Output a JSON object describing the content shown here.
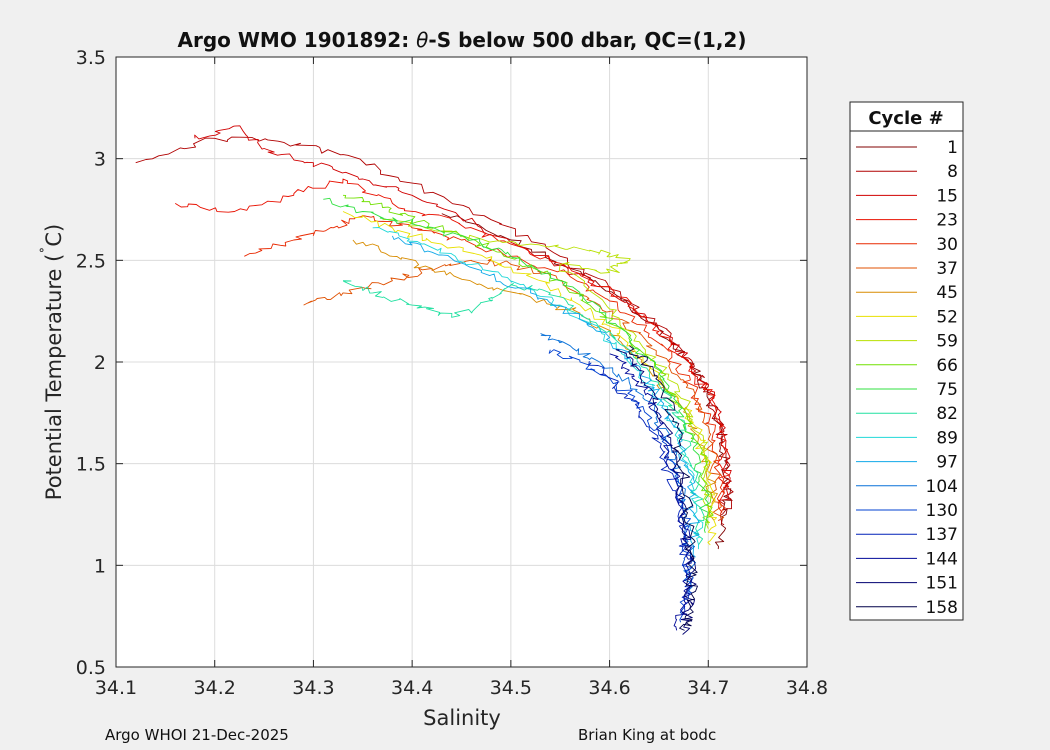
{
  "chart_data": {
    "type": "line",
    "title_prefix": "Argo WMO 1901892: ",
    "title_theta": "θ",
    "title_suffix": "-S below 500 dbar,  QC=(1,2)",
    "xlabel": "Salinity",
    "ylabel_main": "Potential Temperature (",
    "ylabel_degree": "˚",
    "ylabel_end": "C)",
    "xlim": [
      34.1,
      34.8
    ],
    "ylim": [
      0.5,
      3.5
    ],
    "xticks": [
      34.1,
      34.2,
      34.3,
      34.4,
      34.5,
      34.6,
      34.7,
      34.8
    ],
    "xtick_labels": [
      "34.1",
      "34.2",
      "34.3",
      "34.4",
      "34.5",
      "34.6",
      "34.7",
      "34.8"
    ],
    "yticks": [
      0.5,
      1,
      1.5,
      2,
      2.5,
      3,
      3.5
    ],
    "ytick_labels": [
      "0.5",
      "1",
      "1.5",
      "2",
      "2.5",
      "3",
      "3.5"
    ],
    "grid": true,
    "legend_title": "Cycle #",
    "legend_position": "right-outside",
    "series": [
      {
        "name": "1",
        "color": "#800000",
        "x": [
          34.43,
          34.5,
          34.56,
          34.61,
          34.65,
          34.68,
          34.7,
          34.71,
          34.715,
          34.72,
          34.718,
          34.71
        ],
        "y": [
          2.73,
          2.6,
          2.46,
          2.32,
          2.16,
          2.0,
          1.85,
          1.7,
          1.55,
          1.4,
          1.25,
          1.08
        ]
      },
      {
        "name": "8",
        "color": "#b00000",
        "x": [
          34.12,
          34.2,
          34.27,
          34.33,
          34.4,
          34.48,
          34.55,
          34.6,
          34.65,
          34.68,
          34.7,
          34.71,
          34.718,
          34.72,
          34.716
        ],
        "y": [
          2.98,
          3.1,
          3.08,
          3.02,
          2.88,
          2.7,
          2.52,
          2.36,
          2.18,
          2.02,
          1.88,
          1.72,
          1.55,
          1.38,
          1.2
        ]
      },
      {
        "name": "15",
        "color": "#d00000",
        "x": [
          34.18,
          34.22,
          34.25,
          34.3,
          34.35,
          34.4,
          34.47,
          34.54,
          34.6,
          34.65,
          34.68,
          34.7,
          34.712,
          34.718,
          34.716
        ],
        "y": [
          3.1,
          3.16,
          3.05,
          2.98,
          2.9,
          2.82,
          2.66,
          2.5,
          2.34,
          2.16,
          2.0,
          1.86,
          1.7,
          1.5,
          1.3
        ]
      },
      {
        "name": "23",
        "color": "#e81000",
        "x": [
          34.16,
          34.22,
          34.28,
          34.33,
          34.38,
          34.44,
          34.5,
          34.56,
          34.61,
          34.65,
          34.68,
          34.7,
          34.712,
          34.716,
          34.714
        ],
        "y": [
          2.78,
          2.74,
          2.82,
          2.9,
          2.78,
          2.7,
          2.58,
          2.46,
          2.32,
          2.15,
          2.0,
          1.84,
          1.66,
          1.46,
          1.26
        ]
      },
      {
        "name": "30",
        "color": "#e82800",
        "x": [
          34.23,
          34.28,
          34.32,
          34.35,
          34.4,
          34.45,
          34.5,
          34.56,
          34.6,
          34.64,
          34.67,
          34.69,
          34.705,
          34.712,
          34.712
        ],
        "y": [
          2.52,
          2.6,
          2.66,
          2.72,
          2.66,
          2.6,
          2.52,
          2.42,
          2.3,
          2.14,
          1.98,
          1.82,
          1.65,
          1.45,
          1.25
        ]
      },
      {
        "name": "37",
        "color": "#e05000",
        "x": [
          34.29,
          34.33,
          34.38,
          34.42,
          34.46,
          34.5,
          34.55,
          34.59,
          34.63,
          34.66,
          34.69,
          34.7,
          34.708,
          34.71
        ],
        "y": [
          2.28,
          2.34,
          2.4,
          2.46,
          2.5,
          2.48,
          2.4,
          2.28,
          2.14,
          1.98,
          1.8,
          1.62,
          1.42,
          1.22
        ]
      },
      {
        "name": "45",
        "color": "#d88c00",
        "x": [
          34.34,
          34.38,
          34.42,
          34.47,
          34.52,
          34.57,
          34.61,
          34.64,
          34.67,
          34.69,
          34.702,
          34.706
        ],
        "y": [
          2.6,
          2.52,
          2.46,
          2.38,
          2.32,
          2.24,
          2.12,
          1.96,
          1.8,
          1.62,
          1.42,
          1.22
        ]
      },
      {
        "name": "52",
        "color": "#e8e000",
        "x": [
          34.33,
          34.38,
          34.43,
          34.48,
          34.53,
          34.57,
          34.61,
          34.64,
          34.67,
          34.69,
          34.7,
          34.705,
          34.702
        ],
        "y": [
          2.74,
          2.66,
          2.58,
          2.5,
          2.4,
          2.28,
          2.14,
          1.98,
          1.82,
          1.64,
          1.46,
          1.26,
          1.1
        ]
      },
      {
        "name": "59",
        "color": "#b8e000",
        "x": [
          34.37,
          34.45,
          34.52,
          34.58,
          34.62,
          34.6,
          34.55,
          34.6,
          34.63,
          34.66,
          34.68,
          34.695,
          34.7,
          34.7
        ],
        "y": [
          2.7,
          2.62,
          2.58,
          2.55,
          2.5,
          2.44,
          2.48,
          2.26,
          2.1,
          1.94,
          1.76,
          1.58,
          1.38,
          1.18
        ]
      },
      {
        "name": "66",
        "color": "#70e000",
        "x": [
          34.33,
          34.37,
          34.4,
          34.44,
          34.49,
          34.54,
          34.58,
          34.62,
          34.65,
          34.67,
          34.69,
          34.698,
          34.7
        ],
        "y": [
          2.82,
          2.76,
          2.7,
          2.64,
          2.54,
          2.42,
          2.28,
          2.12,
          1.96,
          1.78,
          1.6,
          1.4,
          1.2
        ]
      },
      {
        "name": "75",
        "color": "#30e040",
        "x": [
          34.31,
          34.35,
          34.4,
          34.46,
          34.5,
          34.55,
          34.59,
          34.62,
          34.65,
          34.67,
          34.685,
          34.695,
          34.697
        ],
        "y": [
          2.8,
          2.74,
          2.68,
          2.6,
          2.52,
          2.4,
          2.26,
          2.1,
          1.94,
          1.76,
          1.58,
          1.38,
          1.16
        ]
      },
      {
        "name": "82",
        "color": "#20e0a0",
        "x": [
          34.33,
          34.36,
          34.4,
          34.44,
          34.48,
          34.5,
          34.54,
          34.58,
          34.62,
          34.65,
          34.67,
          34.68,
          34.69,
          34.69
        ],
        "y": [
          2.4,
          2.34,
          2.28,
          2.22,
          2.3,
          2.38,
          2.34,
          2.2,
          2.06,
          1.9,
          1.72,
          1.52,
          1.32,
          1.1
        ]
      },
      {
        "name": "89",
        "color": "#20d8d8",
        "x": [
          34.36,
          34.41,
          34.46,
          34.51,
          34.55,
          34.59,
          34.62,
          34.645,
          34.665,
          34.68,
          34.688,
          34.69
        ],
        "y": [
          2.66,
          2.58,
          2.48,
          2.38,
          2.28,
          2.16,
          2.02,
          1.86,
          1.68,
          1.5,
          1.3,
          1.08
        ]
      },
      {
        "name": "97",
        "color": "#10a8e8",
        "x": [
          34.38,
          34.42,
          34.47,
          34.52,
          34.56,
          34.6,
          34.63,
          34.65,
          34.67,
          34.68,
          34.685,
          34.687
        ],
        "y": [
          2.62,
          2.54,
          2.44,
          2.34,
          2.24,
          2.12,
          1.98,
          1.82,
          1.64,
          1.46,
          1.26,
          1.04
        ]
      },
      {
        "name": "104",
        "color": "#0870d8",
        "x": [
          34.53,
          34.56,
          34.59,
          34.62,
          34.645,
          34.66,
          34.67,
          34.678,
          34.682,
          34.68
        ],
        "y": [
          2.14,
          2.08,
          2.0,
          1.9,
          1.76,
          1.6,
          1.42,
          1.24,
          1.04,
          0.86
        ]
      },
      {
        "name": "130",
        "color": "#0040d0",
        "x": [
          34.54,
          34.57,
          34.6,
          34.63,
          34.65,
          34.665,
          34.675,
          34.68,
          34.678,
          34.672
        ],
        "y": [
          2.06,
          2.0,
          1.92,
          1.8,
          1.64,
          1.46,
          1.26,
          1.06,
          0.88,
          0.72
        ]
      },
      {
        "name": "137",
        "color": "#0020b8",
        "x": [
          34.58,
          34.6,
          34.62,
          34.64,
          34.655,
          34.668,
          34.675,
          34.678,
          34.674
        ],
        "y": [
          2.0,
          1.92,
          1.82,
          1.68,
          1.52,
          1.34,
          1.14,
          0.94,
          0.76
        ]
      },
      {
        "name": "144",
        "color": "#000898",
        "x": [
          34.6,
          34.62,
          34.635,
          34.65,
          34.66,
          34.67,
          34.676,
          34.68,
          34.676,
          34.668
        ],
        "y": [
          2.04,
          1.96,
          1.86,
          1.72,
          1.56,
          1.38,
          1.18,
          0.98,
          0.82,
          0.68
        ]
      },
      {
        "name": "151",
        "color": "#000070",
        "x": [
          34.61,
          34.63,
          34.645,
          34.658,
          34.668,
          34.676,
          34.68,
          34.682,
          34.68,
          34.674
        ],
        "y": [
          2.06,
          1.96,
          1.84,
          1.68,
          1.5,
          1.3,
          1.1,
          0.92,
          0.78,
          0.66
        ]
      },
      {
        "name": "158",
        "color": "#000048",
        "x": [
          34.62,
          34.64,
          34.655,
          34.665,
          34.673,
          34.678,
          34.682,
          34.684,
          34.682,
          34.676
        ],
        "y": [
          2.08,
          1.98,
          1.86,
          1.72,
          1.54,
          1.34,
          1.14,
          0.96,
          0.8,
          0.68
        ]
      }
    ]
  },
  "footer": {
    "left": "Argo WHOI 21-Dec-2025",
    "right": "Brian King at bodc"
  }
}
